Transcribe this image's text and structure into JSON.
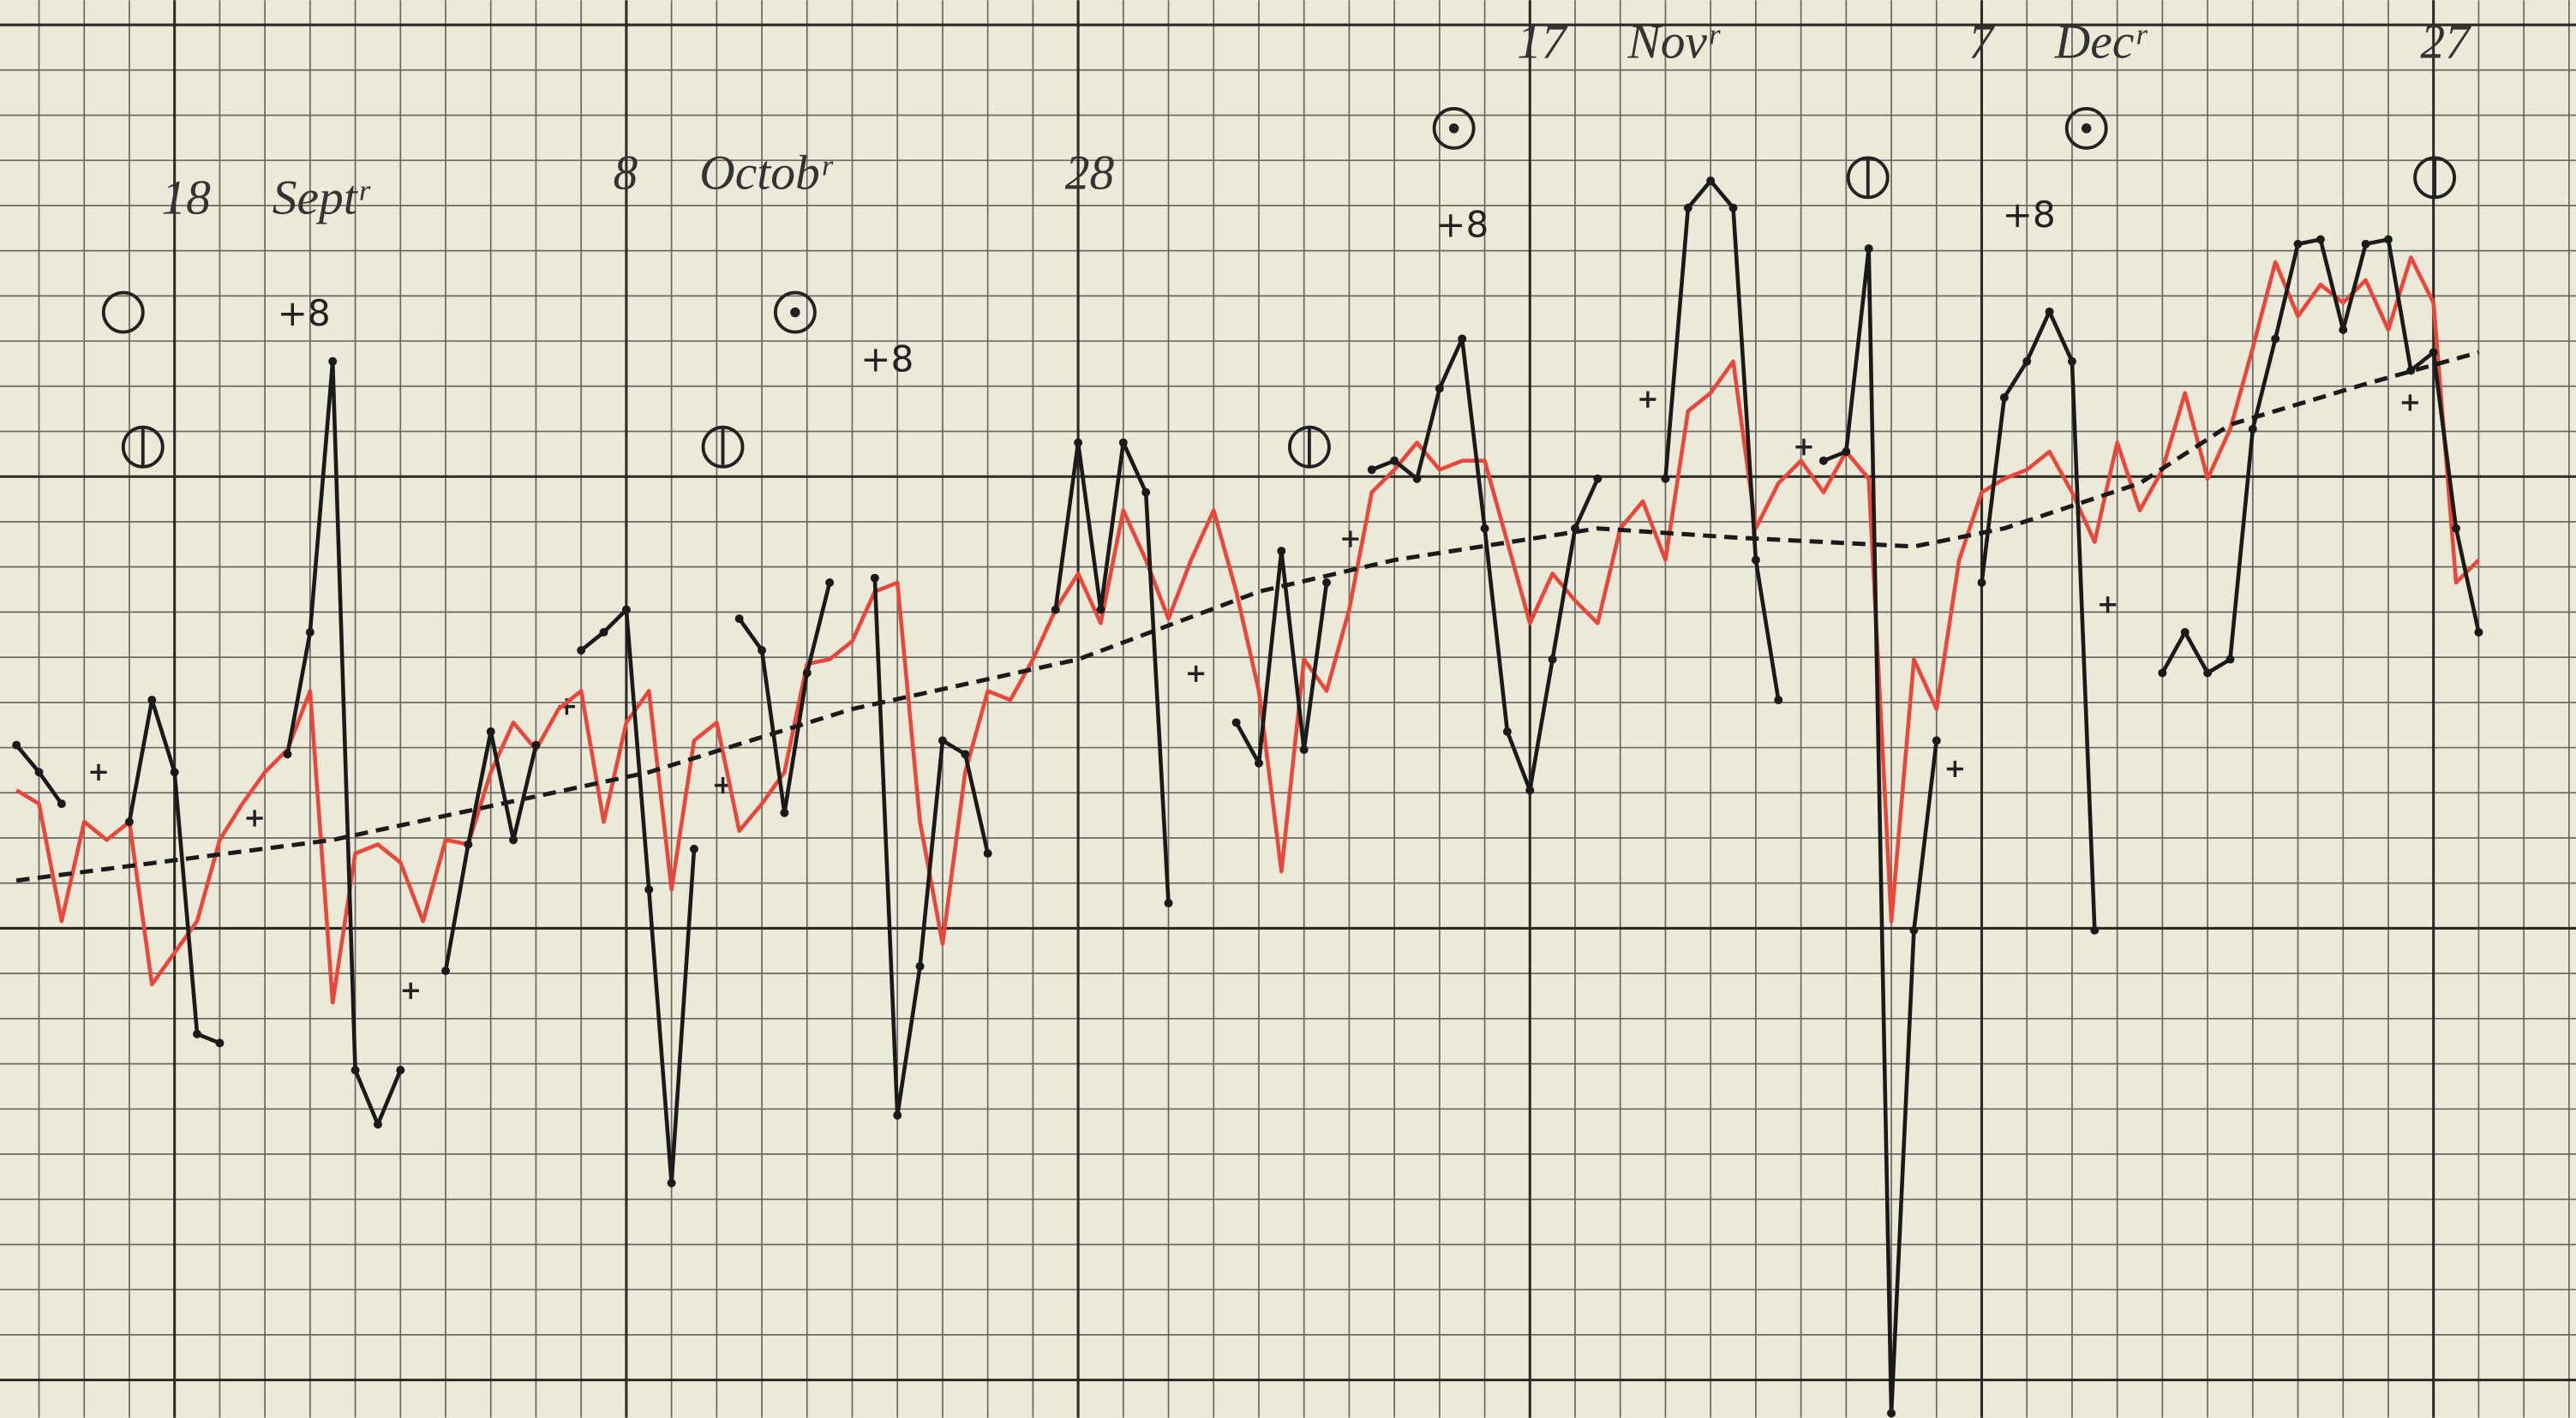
{
  "chart_data": {
    "type": "line",
    "x": [
      0,
      1,
      2,
      3,
      4,
      5,
      6,
      7,
      8,
      9,
      10,
      11,
      12,
      13,
      14,
      15,
      16,
      17,
      18,
      19,
      20,
      21,
      22,
      23,
      24,
      25,
      26,
      27,
      28,
      29,
      30,
      31,
      32,
      33,
      34,
      35,
      36,
      37,
      38,
      39,
      40,
      41,
      42,
      43,
      44,
      45,
      46,
      47,
      48,
      49,
      50,
      51,
      52,
      53,
      54,
      55,
      56,
      57,
      58,
      59,
      60,
      61,
      62,
      63,
      64,
      65,
      66,
      67,
      68,
      69,
      70,
      71,
      72,
      73,
      74,
      75,
      76,
      77,
      78,
      79,
      80,
      81,
      82,
      83,
      84,
      85,
      86,
      87,
      88,
      89,
      90,
      91,
      92,
      93,
      94,
      95,
      96,
      97,
      98,
      99,
      100,
      101,
      102,
      103,
      104,
      105,
      106,
      107,
      108,
      109
    ],
    "xlim": [
      0,
      113
    ],
    "ylim": [
      0,
      31.4
    ],
    "xticks": [
      {
        "value": 7,
        "label": "18 Septʳ"
      },
      {
        "value": 27,
        "label": "8 Octobʳ"
      },
      {
        "value": 47,
        "label": "28"
      },
      {
        "value": 67,
        "label": "17 Novʳ"
      },
      {
        "value": 87,
        "label": "7 Decʳ"
      },
      {
        "value": 107,
        "label": "27"
      }
    ],
    "annotations": [
      "+8",
      "+8",
      "+8",
      "+8"
    ],
    "series": [
      {
        "color": "#e8473c",
        "style": "solid",
        "markers": false,
        "values": [
          13.9,
          13.6,
          11.0,
          13.2,
          12.8,
          13.2,
          9.6,
          10.3,
          11.0,
          12.8,
          13.6,
          14.3,
          14.8,
          16.1,
          9.2,
          12.5,
          12.7,
          12.3,
          11.0,
          12.8,
          12.7,
          14.3,
          15.4,
          14.8,
          15.7,
          16.1,
          13.2,
          15.4,
          16.1,
          11.7,
          15.0,
          15.4,
          13.0,
          13.6,
          14.3,
          16.7,
          16.8,
          17.2,
          18.3,
          18.5,
          13.2,
          10.5,
          14.3,
          16.1,
          15.9,
          16.8,
          17.9,
          18.7,
          17.6,
          20.1,
          19.0,
          17.7,
          19.0,
          20.1,
          18.3,
          16.1,
          12.1,
          16.8,
          16.1,
          17.9,
          20.5,
          21.0,
          21.6,
          21.0,
          21.2,
          21.2,
          19.4,
          17.6,
          18.7,
          18.1,
          17.6,
          19.7,
          20.3,
          19.0,
          22.3,
          22.7,
          23.4,
          19.7,
          20.7,
          21.2,
          20.5,
          21.4,
          20.8,
          11.0,
          16.8,
          15.7,
          19.0,
          20.5,
          20.8,
          21.0,
          21.4,
          20.5,
          19.4,
          21.6,
          20.1,
          21.0,
          22.7,
          20.8,
          21.9,
          23.7,
          25.6,
          24.4,
          25.1,
          24.7,
          25.2,
          24.1,
          25.7,
          24.7,
          18.5,
          19.0
        ]
      },
      {
        "color": "#1a1a1a",
        "style": "solid",
        "markers": true,
        "values": [
          14.9,
          14.3,
          13.6,
          null,
          null,
          13.2,
          15.9,
          14.3,
          8.5,
          8.3,
          null,
          null,
          14.7,
          17.4,
          23.4,
          7.7,
          6.5,
          7.7,
          null,
          9.9,
          12.7,
          15.2,
          12.8,
          14.9,
          null,
          17.0,
          17.4,
          17.9,
          11.7,
          5.2,
          12.6,
          null,
          17.7,
          17.0,
          13.4,
          16.5,
          18.5,
          null,
          18.6,
          6.7,
          10.0,
          15.0,
          14.7,
          12.5,
          null,
          null,
          17.9,
          21.6,
          17.9,
          21.6,
          20.5,
          11.4,
          null,
          null,
          15.4,
          14.5,
          19.2,
          14.8,
          18.5,
          null,
          21.0,
          21.2,
          20.8,
          22.8,
          23.9,
          19.7,
          15.2,
          13.9,
          16.8,
          19.7,
          20.8,
          null,
          null,
          20.8,
          26.8,
          27.4,
          26.8,
          19.0,
          15.9,
          null,
          21.2,
          21.4,
          25.9,
          0.1,
          10.8,
          15.0,
          null,
          18.5,
          22.6,
          23.4,
          24.5,
          23.4,
          10.8,
          null,
          null,
          16.5,
          17.4,
          16.5,
          16.8,
          21.9,
          23.9,
          26.0,
          26.1,
          24.1,
          26.0,
          26.1,
          23.2,
          23.6,
          19.7,
          17.4
        ]
      },
      {
        "color": "#1a1a1a",
        "style": "dashed",
        "markers": false,
        "x": [
          0,
          14,
          28,
          37,
          47,
          55,
          61,
          70,
          76,
          84,
          88,
          94,
          98,
          104,
          109
        ],
        "values": [
          11.9,
          12.8,
          14.3,
          15.7,
          16.8,
          18.3,
          19.0,
          19.7,
          19.5,
          19.3,
          19.7,
          20.7,
          22.0,
          22.9,
          23.6
        ]
      }
    ]
  }
}
